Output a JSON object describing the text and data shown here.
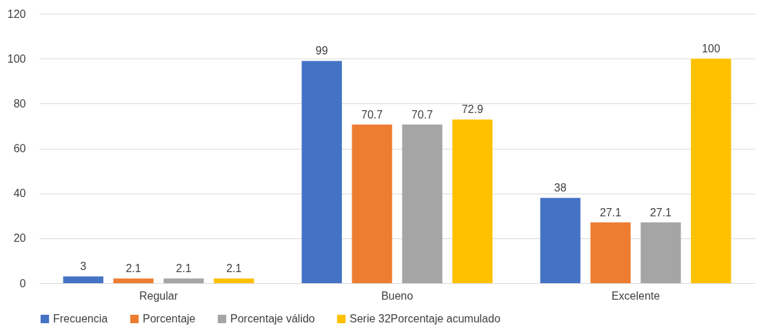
{
  "chart_data": {
    "type": "bar",
    "categories": [
      "Regular",
      "Bueno",
      "Excelente"
    ],
    "series": [
      {
        "name": "Frecuencia",
        "color": "#4472c4",
        "values": [
          3,
          99,
          38
        ]
      },
      {
        "name": "Porcentaje",
        "color": "#ed7d31",
        "values": [
          2.1,
          70.7,
          27.1
        ]
      },
      {
        "name": "Porcentaje válido",
        "color": "#a5a5a5",
        "values": [
          2.1,
          70.7,
          27.1
        ]
      },
      {
        "name": "Serie 32Porcentaje acumulado",
        "color": "#ffc000",
        "values": [
          2.1,
          72.9,
          100
        ]
      }
    ],
    "ylim": [
      0,
      120
    ],
    "yticks": [
      0,
      20,
      40,
      60,
      80,
      100,
      120
    ],
    "grid": "y",
    "legend": "bottom",
    "data_labels": true
  }
}
